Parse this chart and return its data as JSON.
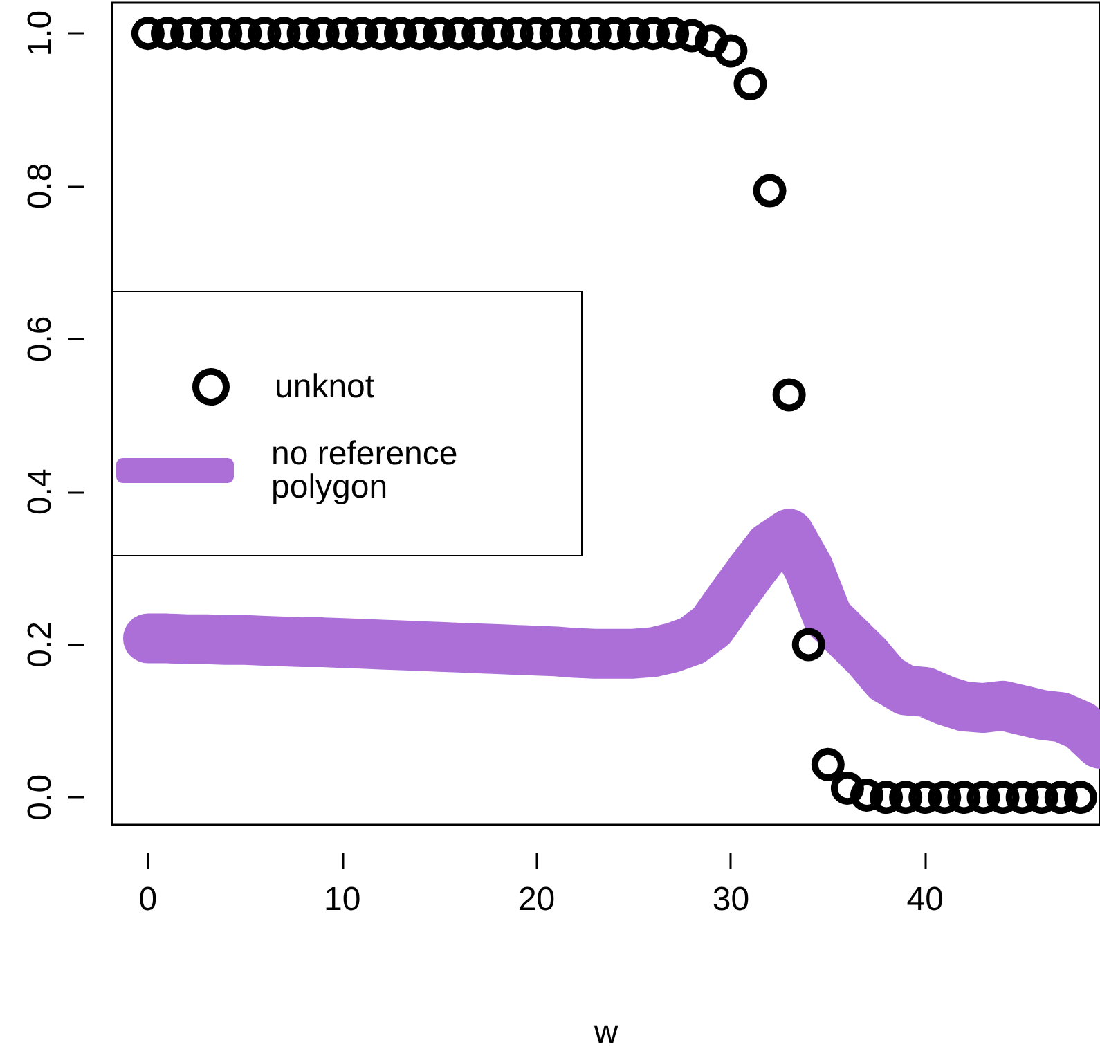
{
  "chart_data": {
    "type": "scatter",
    "xlabel": "w",
    "xlim": [
      -1.85,
      49
    ],
    "ylim": [
      -0.036,
      1.04
    ],
    "xticks": [
      0,
      10,
      20,
      30,
      40
    ],
    "yticks": [
      {
        "value": 0,
        "label": "0.0"
      },
      0.2,
      0.4,
      0.6,
      0.8,
      {
        "value": 1,
        "label": "1.0"
      }
    ],
    "grid": false,
    "legend": "left",
    "series": [
      {
        "name": "unknot",
        "marker": "circle",
        "color": "#000000",
        "x": [
          0,
          1,
          2,
          3,
          4,
          5,
          6,
          7,
          8,
          9,
          10,
          11,
          12,
          13,
          14,
          15,
          16,
          17,
          18,
          19,
          20,
          21,
          22,
          23,
          24,
          25,
          26,
          27,
          28,
          29,
          30,
          31,
          32,
          33,
          34,
          35,
          36,
          37,
          38,
          39,
          40,
          41,
          42,
          43,
          44,
          45,
          46,
          47,
          48
        ],
        "values": [
          1,
          1,
          1,
          1,
          1,
          1,
          1,
          1,
          1,
          1,
          1,
          1,
          1,
          1,
          1,
          1,
          1,
          1,
          1,
          1,
          1,
          1,
          1,
          1,
          1,
          1,
          1,
          1,
          0.997,
          0.99,
          0.977,
          0.934,
          0.794,
          0.527,
          0.2,
          0.043,
          0.012,
          0.003,
          0,
          0,
          0,
          0,
          0,
          0,
          0,
          0,
          0,
          0,
          0
        ]
      },
      {
        "name": "no reference polygon",
        "type": "line",
        "color": "#ab6fd7",
        "x": [
          0,
          1,
          2,
          3,
          4,
          5,
          6,
          7,
          8,
          9,
          10,
          11,
          12,
          13,
          14,
          15,
          16,
          17,
          18,
          19,
          20,
          21,
          22,
          23,
          24,
          25,
          26,
          27,
          28,
          29,
          30,
          31,
          32,
          33,
          34,
          35,
          36,
          37,
          38,
          39,
          40,
          41,
          42,
          43,
          44,
          45,
          46,
          47,
          48,
          49
        ],
        "values": [
          0.208,
          0.208,
          0.207,
          0.207,
          0.206,
          0.206,
          0.205,
          0.204,
          0.203,
          0.203,
          0.202,
          0.201,
          0.2,
          0.199,
          0.198,
          0.197,
          0.196,
          0.195,
          0.194,
          0.193,
          0.192,
          0.191,
          0.189,
          0.188,
          0.188,
          0.188,
          0.19,
          0.196,
          0.205,
          0.224,
          0.26,
          0.295,
          0.328,
          0.345,
          0.3,
          0.235,
          0.21,
          0.185,
          0.155,
          0.14,
          0.138,
          0.127,
          0.119,
          0.117,
          0.12,
          0.114,
          0.108,
          0.105,
          0.094,
          0.07
        ]
      }
    ]
  }
}
